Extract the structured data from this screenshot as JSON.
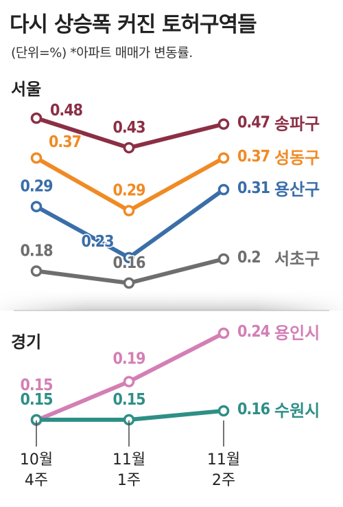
{
  "title": "다시 상승폭 커진 토허구역들",
  "subtitle": "(단위=%) *아파트 매매가 변동률.",
  "colors": {
    "songpa": "#8b2f45",
    "seongdong": "#f08a24",
    "yongsan": "#3a6ea8",
    "seocho": "#6e6e6e",
    "yongin": "#d37fb5",
    "suwon": "#2e8f86"
  },
  "chart_data": [
    {
      "type": "line",
      "panel": "서울",
      "categories": [
        "10월 4주",
        "11월 1주",
        "11월 2주"
      ],
      "series": [
        {
          "name": "송파구",
          "values": [
            0.48,
            0.43,
            0.47
          ],
          "labels": [
            "0.48",
            "0.43",
            "0.47"
          ]
        },
        {
          "name": "성동구",
          "values": [
            0.37,
            0.29,
            0.37
          ],
          "labels": [
            "0.37",
            "0.29",
            "0.37"
          ]
        },
        {
          "name": "용산구",
          "values": [
            0.29,
            0.23,
            0.31
          ],
          "labels": [
            "0.29",
            "0.23",
            "0.31"
          ]
        },
        {
          "name": "서초구",
          "values": [
            0.18,
            0.16,
            0.2
          ],
          "labels": [
            "0.18",
            "0.16",
            "0.2"
          ]
        }
      ]
    },
    {
      "type": "line",
      "panel": "경기",
      "categories": [
        "10월 4주",
        "11월 1주",
        "11월 2주"
      ],
      "series": [
        {
          "name": "용인시",
          "values": [
            0.15,
            0.19,
            0.24
          ],
          "labels": [
            "0.15",
            "0.19",
            "0.24"
          ]
        },
        {
          "name": "수원시",
          "values": [
            0.15,
            0.15,
            0.16
          ],
          "labels": [
            "0.15",
            "0.15",
            "0.16"
          ]
        }
      ]
    }
  ],
  "x_axis": [
    {
      "month": "10월",
      "week": "4주"
    },
    {
      "month": "11월",
      "week": "1주"
    },
    {
      "month": "11월",
      "week": "2주"
    }
  ]
}
